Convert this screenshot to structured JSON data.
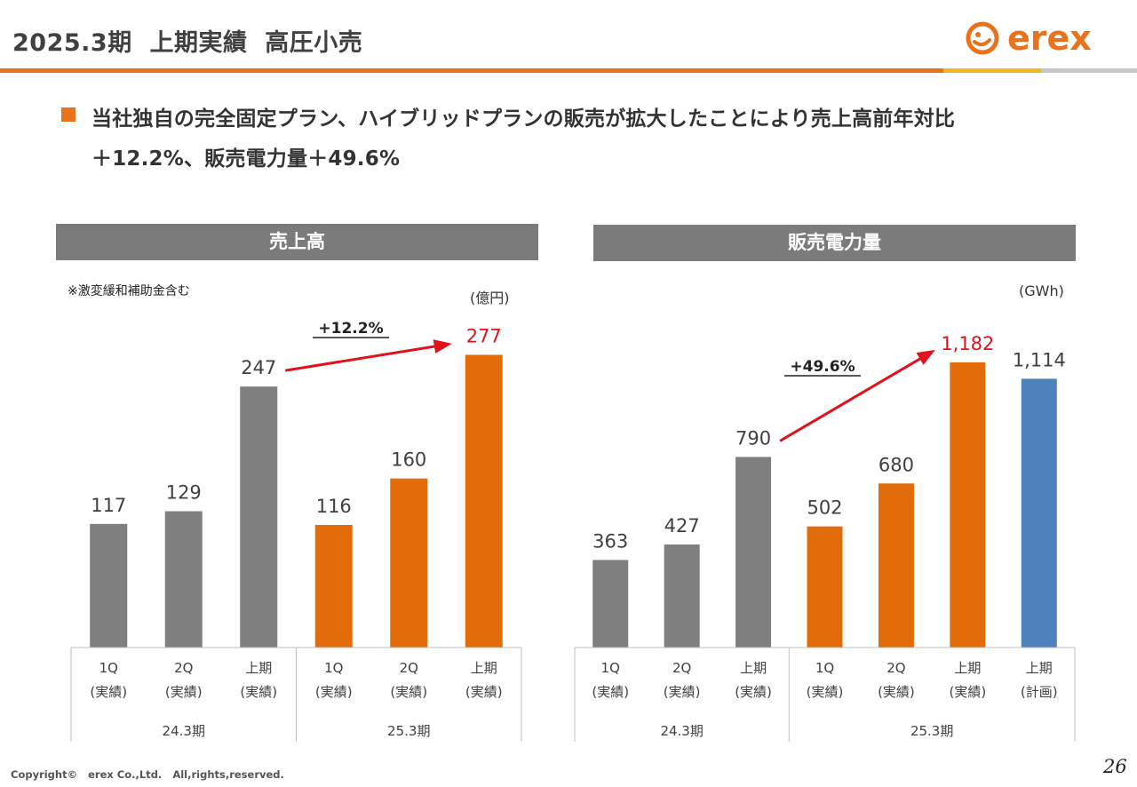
{
  "header": {
    "title": "2025.3期  上期実績  高圧小売",
    "logo_text": "erex",
    "logo_color": "#e8731a"
  },
  "headline": {
    "line1": "当社独自の完全固定プラン、ハイブリッドプランの販売が拡大したことにより売上高前年対比",
    "line2": "＋12.2%、販売電力量＋49.6%"
  },
  "colors": {
    "grey_bar": "#7f7f7f",
    "orange_bar": "#e36c0a",
    "blue_bar": "#4f81bd",
    "highlight_red": "#e0121b"
  },
  "chart_data": [
    {
      "type": "bar",
      "title": "売上高",
      "note": "※激変緩和補助金含む",
      "unit": "(億円)",
      "categories": [
        "1Q\n(実績)",
        "2Q\n(実績)",
        "上期\n(実績)",
        "1Q\n(実績)",
        "2Q\n(実績)",
        "上期\n(実績)"
      ],
      "values": [
        117,
        129,
        247,
        116,
        160,
        277
      ],
      "value_labels": [
        "117",
        "129",
        "247",
        "116",
        "160",
        "277"
      ],
      "bar_colors": [
        "grey",
        "grey",
        "grey",
        "orange",
        "orange",
        "orange"
      ],
      "highlight_index": 5,
      "groups": [
        {
          "label": "24.3期",
          "count": 3
        },
        {
          "label": "25.3期",
          "count": 3
        }
      ],
      "annotation": {
        "text": "+12.2%",
        "from_index": 2,
        "to_index": 5
      },
      "ylim": [
        0,
        290
      ]
    },
    {
      "type": "bar",
      "title": "販売電力量",
      "note": "",
      "unit": "(GWh)",
      "categories": [
        "1Q\n(実績)",
        "2Q\n(実績)",
        "上期\n(実績)",
        "1Q\n(実績)",
        "2Q\n(実績)",
        "上期\n(実績)",
        "上期\n(計画)"
      ],
      "values": [
        363,
        427,
        790,
        502,
        680,
        1182,
        1114
      ],
      "value_labels": [
        "363",
        "427",
        "790",
        "502",
        "680",
        "1,182",
        "1,114"
      ],
      "bar_colors": [
        "grey",
        "grey",
        "grey",
        "orange",
        "orange",
        "orange",
        "blue"
      ],
      "highlight_index": 5,
      "groups": [
        {
          "label": "24.3期",
          "count": 3
        },
        {
          "label": "25.3期",
          "count": 4
        }
      ],
      "annotation": {
        "text": "+49.6%",
        "from_index": 2,
        "to_index": 5
      },
      "ylim": [
        0,
        1270
      ]
    }
  ],
  "footer": {
    "copyright": "Copyright©   erex Co.,Ltd.   All,rights,reserved.",
    "page_number": "26"
  }
}
